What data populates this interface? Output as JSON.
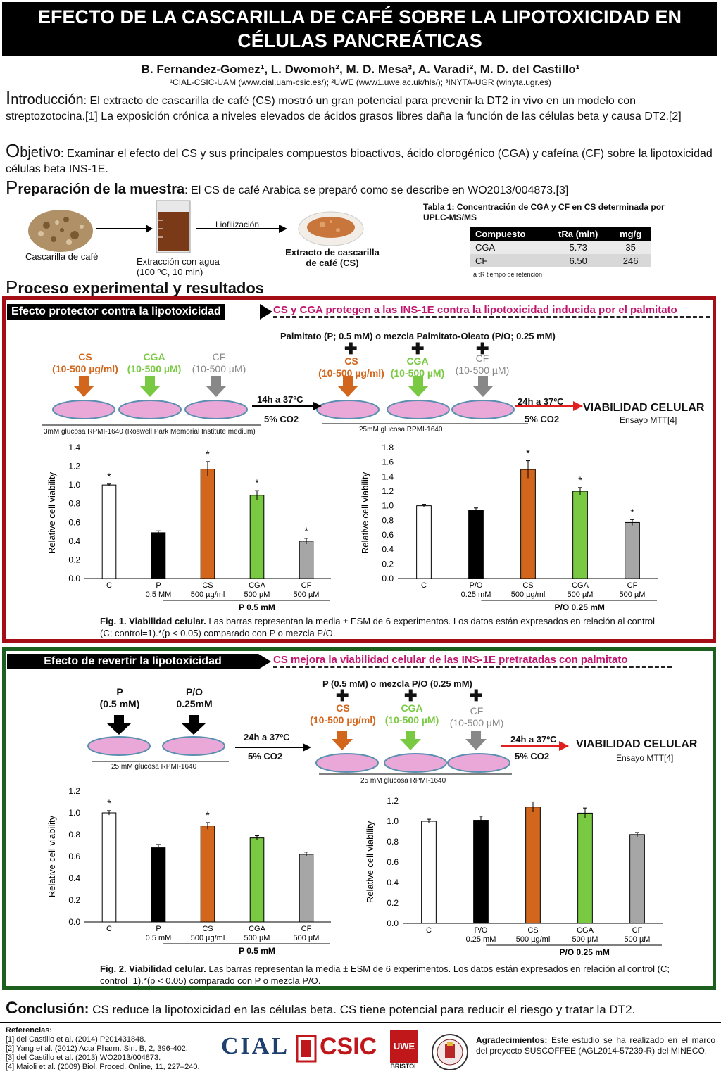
{
  "header": {
    "title_line1": "EFECTO DE LA CASCARILLA DE CAFÉ SOBRE LA LIPOTOXICIDAD EN",
    "title_line2": "CÉLULAS PANCREÁTICAS",
    "authors": "B. Fernandez-Gomez¹, L.  Dwomoh², M. D. Mesa³, A. Varadi², M. D. del Castillo¹",
    "affiliations": "¹CIAL-CSIC-UAM (www.cial.uam-csic.es/);  ²UWE (www1.uwe.ac.uk/hls/);  ³INYTA-UGR (winyta.ugr.es)"
  },
  "intro": {
    "initial": "I",
    "heading": "ntroducción",
    "text": ": El extracto de cascarilla de café (CS) mostró un gran potencial para prevenir la DT2  in vivo en un modelo con streptozotocina.[1] La exposición crónica a niveles elevados de ácidos grasos libres daña la función de las células beta y causa DT2.[2]"
  },
  "objective": {
    "initial": "O",
    "heading": "bjetivo",
    "text": ": Examinar el efecto del CS y sus principales compuestos bioactivos, ácido clorogénico (CGA) y cafeína (CF) sobre la lipotoxicidad  células beta INS-1E."
  },
  "preparation": {
    "initial": "P",
    "heading": "reparación de la muestra",
    "text": ": El CS de café Arabica se preparó como se describe en WO2013/004873.[3]",
    "img1_label": "Cascarilla de café",
    "img2_label_line1": "Extracción con agua",
    "img2_label_line2": "(100 ºC, 10 min)",
    "arrow_label": "Liofilización",
    "img3_label_line1": "Extracto de cascarilla",
    "img3_label_line2": "de café (CS)"
  },
  "table1": {
    "caption": "Tabla 1: Concentración de CGA y CF en CS determinada por UPLC-MS/MS",
    "headers": [
      "Compuesto",
      "tRa (min)",
      "mg/g"
    ],
    "rows": [
      [
        "CGA",
        "5.73",
        "35"
      ],
      [
        "CF",
        "6.50",
        "246"
      ]
    ],
    "footnote": "a tR tiempo de retención"
  },
  "process": {
    "initial": "P",
    "heading": "roceso experimental y resultados"
  },
  "section1": {
    "tag": "Efecto protector contra la lipotoxicidad",
    "headline": "CS y CGA protegen a las INS-1E contra la lipotoxicidad inducida por el palmitato",
    "palmitate": "Palmitato (P; 0.5 mM) o mezcla Palmitato-Oleato (P/O; 0.25 mM)",
    "cs": "CS",
    "cs_dose": "(10-500 µg/ml)",
    "cga": "CGA",
    "cga_dose": "(10-500 µM)",
    "cf": "CF",
    "cf_dose": "(10-500 µM)",
    "incub1": "14h a 37ºC",
    "co2_1": "5% CO2",
    "incub2": "24h a 37ºC",
    "co2_2": "5% CO2",
    "viab": "VIABILIDAD CELULAR",
    "assay": "Ensayo MTT[4]",
    "medium1": "3mM glucosa RPMI-1640 (Roswell Park Memorial Institute medium)",
    "medium2": "25mM glucosa RPMI-1640",
    "caption_bold": "Fig. 1. Viabilidad celular.",
    "caption": " Las barras representan la media ± ESM de 6 experimentos. Los datos están expresados en relación al control (C; control=1).*(p < 0.05) comparado con P o mezcla P/O."
  },
  "section2": {
    "tag": "Efecto de revertir la lipotoxicidad",
    "headline": "CS mejora la viabilidad celular de las INS-1E pretratadas con palmitato",
    "p": "P",
    "p_dose": "(0.5 mM)",
    "po": "P/O",
    "po_dose": "0.25mM",
    "incub1": "24h a 37ºC",
    "co2_1": "5% CO2",
    "mix": "P (0.5 mM) o mezcla P/O (0.25 mM)",
    "cs": "CS",
    "cs_dose": "(10-500 µg/ml)",
    "cga": "CGA",
    "cga_dose": "(10-500 µM)",
    "cf": "CF",
    "cf_dose": "(10-500 µM)",
    "incub2": "24h a 37ºC",
    "co2_2": "5% CO2",
    "viab": "VIABILIDAD CELULAR",
    "assay": "Ensayo MTT[4]",
    "medium1": "25 mM glucosa RPMI-1640",
    "medium2": "25 mM glucosa RPMI-1640",
    "caption_bold": "Fig. 2. Viabilidad celular.",
    "caption": " Las barras representan la media ± ESM de 6 experimentos. Los datos están expresados en relación al control (C; control=1).*(p < 0.05) comparado con P o mezcla P/O."
  },
  "chart_data": [
    {
      "type": "bar",
      "ylabel": "Relative  cell viability",
      "ylim": [
        0,
        1.4
      ],
      "yticks": [
        0.0,
        0.2,
        0.4,
        0.6,
        0.8,
        1.0,
        1.2,
        1.4
      ],
      "categories": [
        "C",
        "P\n0.5 MM",
        "CS\n500 µg/ml",
        "CGA\n500 µM",
        "CF\n500 µM"
      ],
      "values": [
        1.0,
        0.49,
        1.17,
        0.89,
        0.4
      ],
      "errors": [
        0.01,
        0.02,
        0.08,
        0.05,
        0.03
      ],
      "significant": [
        true,
        false,
        true,
        true,
        true
      ],
      "colors": [
        "#ffffff",
        "#000000",
        "#d2661c",
        "#7ac943",
        "#a6a6a6"
      ],
      "group_label": "P 0.5 mM"
    },
    {
      "type": "bar",
      "ylabel": "Relative  cell viability",
      "ylim": [
        0,
        1.8
      ],
      "yticks": [
        0.0,
        0.2,
        0.4,
        0.6,
        0.8,
        1.0,
        1.2,
        1.4,
        1.6,
        1.8
      ],
      "categories": [
        "C",
        "P/O\n0.25 mM",
        "CS\n500 µg/ml",
        "CGA\n500 µM",
        "CF\n500 µM"
      ],
      "values": [
        1.0,
        0.94,
        1.5,
        1.2,
        0.77
      ],
      "errors": [
        0.02,
        0.03,
        0.12,
        0.05,
        0.04
      ],
      "significant": [
        false,
        false,
        true,
        true,
        true
      ],
      "colors": [
        "#ffffff",
        "#000000",
        "#d2661c",
        "#7ac943",
        "#a6a6a6"
      ],
      "group_label": "P/O 0.25 mM"
    },
    {
      "type": "bar",
      "ylabel": "Relative  cell viability",
      "ylim": [
        0,
        1.2
      ],
      "yticks": [
        0.0,
        0.2,
        0.4,
        0.6,
        0.8,
        1.0,
        1.2
      ],
      "categories": [
        "C",
        "P\n0.5 mM",
        "CS\n500 µg/ml",
        "CGA\n500 µM",
        "CF\n500 µM"
      ],
      "values": [
        1.0,
        0.68,
        0.88,
        0.77,
        0.62
      ],
      "errors": [
        0.02,
        0.03,
        0.03,
        0.02,
        0.02
      ],
      "significant": [
        true,
        false,
        true,
        false,
        false
      ],
      "colors": [
        "#ffffff",
        "#000000",
        "#d2661c",
        "#7ac943",
        "#a6a6a6"
      ],
      "group_label": "P 0.5 mM"
    },
    {
      "type": "bar",
      "ylabel": "Relative  cell viability",
      "ylim": [
        0,
        1.2
      ],
      "yticks": [
        0.0,
        0.2,
        0.4,
        0.6,
        0.8,
        1.0,
        1.2
      ],
      "categories": [
        "C",
        "P/O\n0.25 mM",
        "CS\n500 µg/ml",
        "CGA\n500 µM",
        "CF\n500 µM"
      ],
      "values": [
        1.0,
        1.01,
        1.14,
        1.08,
        0.87
      ],
      "errors": [
        0.02,
        0.04,
        0.05,
        0.05,
        0.02
      ],
      "significant": [
        false,
        false,
        false,
        false,
        false
      ],
      "colors": [
        "#ffffff",
        "#000000",
        "#d2661c",
        "#7ac943",
        "#a6a6a6"
      ],
      "group_label": "P/O 0.25 mM"
    }
  ],
  "conclusion": {
    "initial": "C",
    "heading": "onclusión:",
    "text": " CS reduce la lipotoxicidad en las células beta. CS tiene potencial para reducir el riesgo y tratar la DT2."
  },
  "references": {
    "title": "Referencias:",
    "items": [
      "[1] del Castillo et al. (2014) P201431848.",
      "[2] Yang et al. (2012) Acta Pharm. Sin. B, 2, 396-402.",
      "[3] del Castillo et al. (2013) WO2013/004873.",
      "[4] Maioli et al. (2009) Biol. Proced. Online, 11, 227–240."
    ]
  },
  "logos": {
    "cial": "CIAL",
    "csic": "CSIC",
    "uwe": "UWE",
    "bristol": "BRISTOL"
  },
  "acknowledgements": {
    "title": "Agradecimientos:",
    "text": " Este estudio se ha realizado en el marco del proyecto SUSCOFFEE (AGL2014-57239-R) del MINECO."
  }
}
